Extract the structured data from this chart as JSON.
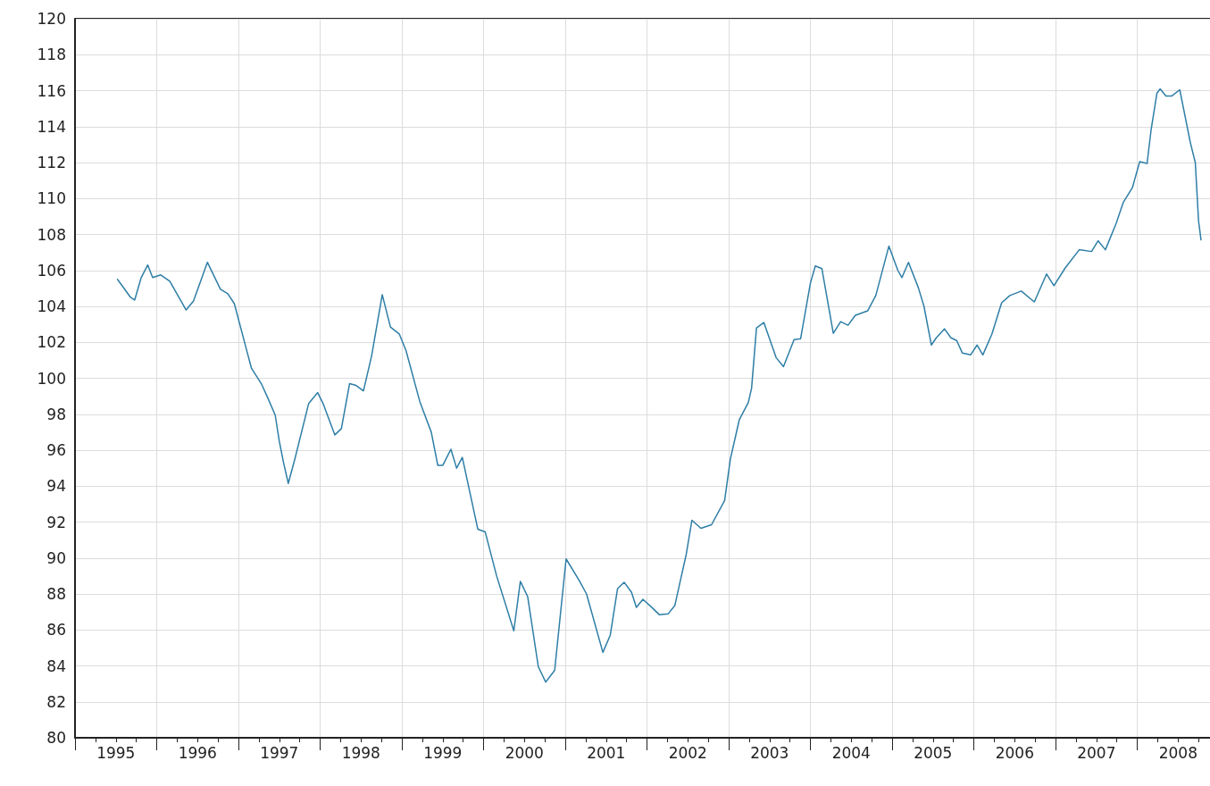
{
  "chart_data": {
    "type": "line",
    "x": [
      1995.52,
      1995.68,
      1995.73,
      1995.81,
      1995.89,
      1995.95,
      1996.05,
      1996.16,
      1996.36,
      1996.45,
      1996.62,
      1996.78,
      1996.87,
      1996.95,
      1997.11,
      1997.16,
      1997.28,
      1997.36,
      1997.45,
      1997.5,
      1997.55,
      1997.61,
      1997.69,
      1997.86,
      1997.97,
      1998.04,
      1998.18,
      1998.26,
      1998.36,
      1998.44,
      1998.53,
      1998.63,
      1998.76,
      1998.86,
      1998.97,
      1999.05,
      1999.22,
      1999.36,
      1999.44,
      1999.5,
      1999.6,
      1999.67,
      1999.74,
      1999.93,
      2000.02,
      2000.16,
      2000.37,
      2000.45,
      2000.54,
      2000.67,
      2000.76,
      2000.87,
      2001.01,
      2001.17,
      2001.26,
      2001.46,
      2001.55,
      2001.64,
      2001.72,
      2001.81,
      2001.87,
      2001.95,
      2002.06,
      2002.15,
      2002.26,
      2002.34,
      2002.48,
      2002.55,
      2002.66,
      2002.79,
      2002.95,
      2003.02,
      2003.13,
      2003.24,
      2003.28,
      2003.34,
      2003.43,
      2003.58,
      2003.67,
      2003.8,
      2003.88,
      2004.0,
      2004.06,
      2004.14,
      2004.28,
      2004.37,
      2004.46,
      2004.55,
      2004.7,
      2004.8,
      2004.96,
      2005.07,
      2005.12,
      2005.2,
      2005.32,
      2005.39,
      2005.48,
      2005.54,
      2005.64,
      2005.72,
      2005.79,
      2005.86,
      2005.96,
      2006.04,
      2006.11,
      2006.22,
      2006.34,
      2006.44,
      2006.58,
      2006.74,
      2006.89,
      2006.98,
      2007.12,
      2007.29,
      2007.44,
      2007.52,
      2007.61,
      2007.74,
      2007.83,
      2007.94,
      2008.03,
      2008.12,
      2008.17,
      2008.24,
      2008.28,
      2008.35,
      2008.42,
      2008.52,
      2008.65,
      2008.71,
      2008.75,
      2008.78
    ],
    "series": [
      {
        "color": "#2e7ea6",
        "values": [
          105.5,
          104.5,
          104.35,
          105.6,
          106.3,
          105.6,
          105.75,
          105.4,
          103.8,
          104.3,
          106.45,
          104.95,
          104.7,
          104.15,
          101.4,
          100.55,
          99.7,
          98.9,
          97.95,
          96.5,
          95.35,
          94.15,
          95.5,
          98.6,
          99.2,
          98.55,
          96.85,
          97.2,
          99.7,
          99.6,
          99.3,
          101.25,
          104.65,
          102.85,
          102.45,
          101.55,
          98.7,
          97.0,
          95.15,
          95.15,
          96.05,
          95.0,
          95.6,
          91.6,
          91.45,
          89.0,
          85.95,
          88.7,
          87.85,
          83.95,
          83.1,
          83.75,
          89.95,
          88.75,
          88.0,
          84.75,
          85.7,
          88.3,
          88.65,
          88.1,
          87.25,
          87.7,
          87.25,
          86.85,
          86.9,
          87.35,
          90.2,
          92.1,
          91.65,
          91.85,
          93.2,
          95.5,
          97.7,
          98.65,
          99.45,
          102.8,
          103.1,
          101.15,
          100.65,
          102.15,
          102.2,
          105.3,
          106.25,
          106.1,
          102.5,
          103.15,
          102.95,
          103.5,
          103.75,
          104.6,
          107.35,
          106.0,
          105.6,
          106.45,
          105.05,
          104.0,
          101.85,
          102.25,
          102.75,
          102.25,
          102.1,
          101.4,
          101.3,
          101.85,
          101.3,
          102.45,
          104.2,
          104.6,
          104.85,
          104.25,
          105.8,
          105.15,
          106.15,
          107.15,
          107.05,
          107.65,
          107.15,
          108.6,
          109.8,
          110.6,
          112.05,
          111.95,
          113.85,
          115.85,
          116.1,
          115.7,
          115.7,
          116.05,
          113.1,
          112.0,
          108.75,
          107.7
        ]
      }
    ],
    "xlim": [
      1995,
      2008.89
    ],
    "xticks": [
      {
        "value": 1995,
        "label": null
      },
      {
        "value": 1995.5,
        "label": "1995"
      },
      {
        "value": 1996,
        "label": null
      },
      {
        "value": 1996.5,
        "label": "1996"
      },
      {
        "value": 1997,
        "label": null
      },
      {
        "value": 1997.5,
        "label": "1997"
      },
      {
        "value": 1998,
        "label": null
      },
      {
        "value": 1998.5,
        "label": "1998"
      },
      {
        "value": 1999,
        "label": null
      },
      {
        "value": 1999.5,
        "label": "1999"
      },
      {
        "value": 2000,
        "label": null
      },
      {
        "value": 2000.5,
        "label": "2000"
      },
      {
        "value": 2001,
        "label": null
      },
      {
        "value": 2001.5,
        "label": "2001"
      },
      {
        "value": 2002,
        "label": null
      },
      {
        "value": 2002.5,
        "label": "2002"
      },
      {
        "value": 2003,
        "label": null
      },
      {
        "value": 2003.5,
        "label": "2003"
      },
      {
        "value": 2004,
        "label": null
      },
      {
        "value": 2004.5,
        "label": "2004"
      },
      {
        "value": 2005,
        "label": null
      },
      {
        "value": 2005.5,
        "label": "2005"
      },
      {
        "value": 2006,
        "label": null
      },
      {
        "value": 2006.5,
        "label": "2006"
      },
      {
        "value": 2007,
        "label": null
      },
      {
        "value": 2007.5,
        "label": "2007"
      },
      {
        "value": 2008,
        "label": null
      },
      {
        "value": 2008.5,
        "label": "2008"
      }
    ],
    "ylim": [
      80,
      120
    ],
    "yticks": [
      80,
      82,
      84,
      86,
      88,
      90,
      92,
      94,
      96,
      98,
      100,
      102,
      104,
      106,
      108,
      110,
      112,
      114,
      116,
      118,
      120
    ],
    "grid": true,
    "marker": "none",
    "line_style": "solid"
  }
}
